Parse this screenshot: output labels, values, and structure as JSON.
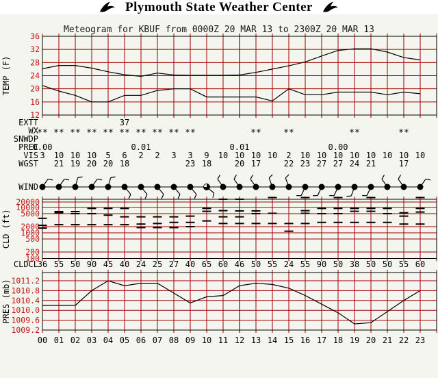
{
  "header": {
    "title": "Plymouth State Weather Center",
    "subtitle": "Meteogram for KBUF from 0000Z 20 MAR 13 to 2300Z 20 MAR 13"
  },
  "colors": {
    "grid": "#9e0000",
    "tick_label": "#c41111",
    "data_line": "#000000",
    "background": "#f4f5ee",
    "title_background": "#ffffff",
    "title_text": "#000000"
  },
  "hours": [
    "00",
    "01",
    "02",
    "03",
    "04",
    "05",
    "06",
    "07",
    "08",
    "09",
    "10",
    "11",
    "12",
    "13",
    "14",
    "15",
    "16",
    "17",
    "18",
    "19",
    "20",
    "21",
    "22",
    "23"
  ],
  "chart_data": [
    {
      "type": "line",
      "title": "Meteogram for KBUF from 0000Z 20 MAR 13 to 2300Z 20 MAR 13",
      "ylabel": "TEMP (F)",
      "ylim": [
        12,
        36
      ],
      "yticks": [
        36,
        32,
        28,
        24,
        20,
        16,
        12
      ],
      "x_hours": [
        0,
        1,
        2,
        3,
        4,
        5,
        6,
        7,
        8,
        9,
        10,
        11,
        12,
        13,
        14,
        15,
        16,
        17,
        18,
        19,
        20,
        21,
        22,
        23
      ],
      "series": [
        {
          "name": "temperature_f",
          "values": [
            26.1,
            27.1,
            27.1,
            26.3,
            25.2,
            24.3,
            23.8,
            24.8,
            24.2,
            24.1,
            24.1,
            24.1,
            24.2,
            25.0,
            26.0,
            27.0,
            28.2,
            30.0,
            31.7,
            32.2,
            32.2,
            31.2,
            29.5,
            28.8
          ]
        },
        {
          "name": "dewpoint_f",
          "values": [
            21.0,
            19.3,
            18.0,
            16.0,
            16.0,
            18.0,
            18.0,
            19.5,
            20.0,
            20.0,
            17.5,
            17.5,
            17.5,
            17.5,
            16.3,
            20.0,
            18.2,
            18.2,
            19.0,
            19.0,
            19.0,
            18.2,
            19.0,
            18.5
          ]
        }
      ]
    },
    {
      "type": "scatter",
      "name": "cloud_layers",
      "ylabel": "CLD (ft)",
      "yscale": "log",
      "yticks": [
        20000,
        10000,
        5000,
        2000,
        1000,
        500,
        200,
        100
      ],
      "layers_ft_by_hour": [
        [
          3600,
          2200,
          1700
        ],
        [
          6300,
          5600,
          2300
        ],
        [
          6300,
          5000,
          2300
        ],
        [
          9000,
          5000,
          2300
        ],
        [
          9000,
          4500,
          2300
        ],
        [
          9000,
          4000,
          2300
        ],
        [
          4000,
          2400,
          1800
        ],
        [
          4000,
          2500,
          1800
        ],
        [
          4000,
          2700,
          1800
        ],
        [
          4200,
          2700,
          2000
        ],
        [
          9000,
          6500,
          3000
        ],
        [
          23000,
          7000,
          4000,
          2500
        ],
        [
          23000,
          6800,
          4000,
          2500
        ],
        [
          6800,
          5000,
          2500
        ],
        [
          25000,
          5200,
          2500
        ],
        [
          2500,
          1200
        ],
        [
          25000,
          7000,
          5200,
          2500
        ],
        [
          9000,
          5000,
          2700
        ],
        [
          25000,
          9000,
          5000,
          2700
        ],
        [
          9000,
          6500,
          2700
        ],
        [
          25000,
          9000,
          6500,
          2700
        ],
        [
          9000,
          5000,
          2700
        ],
        [
          5500,
          4200,
          2400
        ],
        [
          25000,
          9000,
          6000,
          2400
        ]
      ]
    },
    {
      "type": "line",
      "name": "pressure",
      "ylabel": "PRES (mb)",
      "yticks": [
        "1011.2",
        "1010.8",
        "1010.4",
        "1010.0",
        "1009.6",
        "1009.2"
      ],
      "values": [
        1010.2,
        1010.2,
        1010.2,
        1010.8,
        1011.2,
        1011.0,
        1011.1,
        1011.1,
        1010.7,
        1010.3,
        1010.55,
        1010.6,
        1011.0,
        1011.1,
        1011.05,
        1010.9,
        1010.6,
        1010.25,
        1009.9,
        1009.45,
        1009.5,
        1009.95,
        1010.4,
        1010.8
      ]
    }
  ],
  "rows": {
    "extt": {
      "label": "EXTT",
      "values": {
        "5": "37"
      }
    },
    "wx": {
      "label": "WX",
      "symbol": "**",
      "snow_hours": [
        0,
        1,
        2,
        3,
        4,
        5,
        6,
        7,
        8,
        9,
        13,
        15,
        19,
        22
      ]
    },
    "snwdp": {
      "label": "SNWDP",
      "values": {}
    },
    "prec": {
      "label": "PREC",
      "values": {
        "0": "0.00",
        "6": "0.01",
        "12": "0.01",
        "18": "0.00"
      }
    },
    "vis": {
      "label": "VIS",
      "values": [
        "3",
        "10",
        "10",
        "10",
        "5",
        "6",
        "2",
        "2",
        "3",
        "3",
        "9",
        "10",
        "10",
        "10",
        "10",
        "2",
        "10",
        "10",
        "10",
        "10",
        "10",
        "10",
        "10",
        "10"
      ]
    },
    "wgst": {
      "label": "WGST",
      "values": {
        "1": "21",
        "2": "19",
        "3": "20",
        "4": "20",
        "5": "18",
        "9": "23",
        "10": "18",
        "12": "20",
        "13": "17",
        "15": "22",
        "16": "23",
        "17": "27",
        "18": "27",
        "19": "24",
        "20": "21",
        "22": "17"
      }
    },
    "wind": {
      "label": "WIND",
      "shaft_angles_deg": [
        35,
        35,
        15,
        35,
        15,
        140,
        140,
        140,
        140,
        140,
        130,
        -35,
        -35,
        -35,
        -20,
        -20,
        205,
        205,
        205,
        200,
        205,
        -35,
        -35,
        35
      ],
      "open_quarter_hours": [
        10
      ]
    },
    "cldcl": {
      "label": "CLDCL",
      "values": [
        "36",
        "55",
        "50",
        "90",
        "45",
        "40",
        "24",
        "25",
        "27",
        "40",
        "65",
        "60",
        "46",
        "50",
        "55",
        "24",
        "55",
        "90",
        "50",
        "38",
        "50",
        "50",
        "55",
        "60"
      ]
    }
  }
}
